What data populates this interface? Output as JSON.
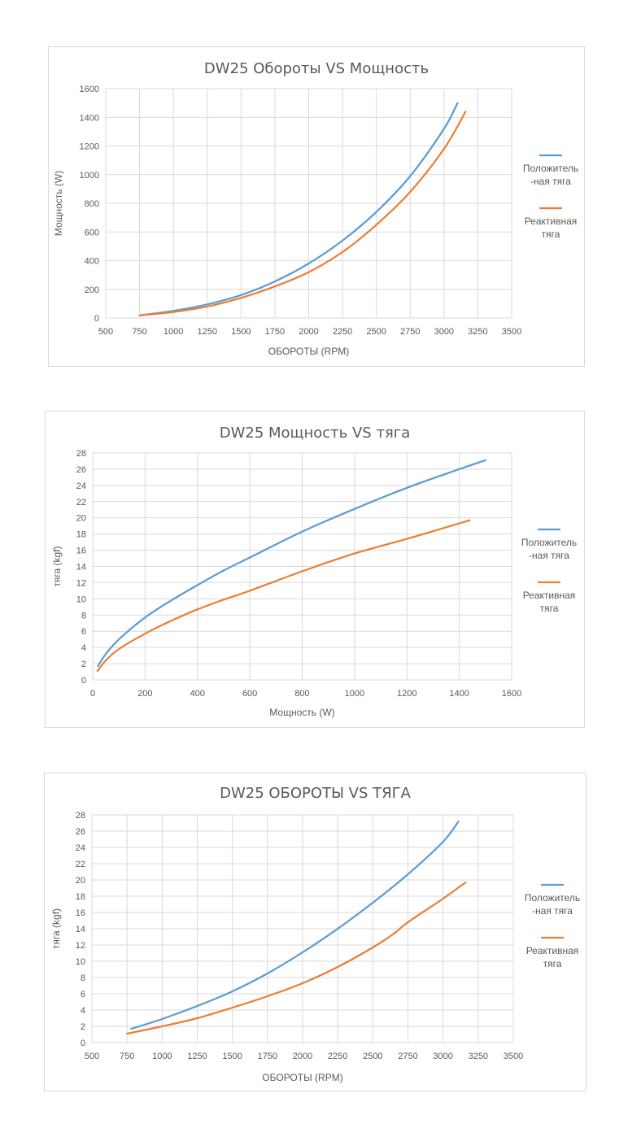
{
  "colors": {
    "positive": "#5b9bd5",
    "reactive": "#ed7d31",
    "grid": "#d9d9d9",
    "text": "#595959"
  },
  "chart_data": [
    {
      "type": "line",
      "title": "DW25 Обороты VS Мощность",
      "xlabel": "ОБОРОТЫ (RPM)",
      "ylabel": "Мощность (W)",
      "xlim": [
        500,
        3500
      ],
      "ylim": [
        0,
        1600
      ],
      "xticks": [
        500,
        750,
        1000,
        1250,
        1500,
        1750,
        2000,
        2250,
        2500,
        2750,
        3000,
        3250,
        3500
      ],
      "yticks": [
        0,
        200,
        400,
        600,
        800,
        1000,
        1200,
        1400,
        1600
      ],
      "grid": true,
      "legend_position": "right",
      "series": [
        {
          "name": "Положитель-ная тяга",
          "color": "#5b9bd5",
          "x": [
            760,
            1000,
            1250,
            1500,
            1750,
            2000,
            2250,
            2500,
            2750,
            3000,
            3100
          ],
          "y": [
            20,
            50,
            95,
            160,
            255,
            380,
            540,
            740,
            990,
            1320,
            1500
          ]
        },
        {
          "name": "Реактивная тяга",
          "color": "#ed7d31",
          "x": [
            750,
            1000,
            1250,
            1500,
            1750,
            2000,
            2250,
            2500,
            2750,
            3000,
            3160
          ],
          "y": [
            18,
            42,
            80,
            140,
            220,
            320,
            460,
            650,
            880,
            1180,
            1440
          ]
        }
      ]
    },
    {
      "type": "line",
      "title": "DW25 Мощность VS тяга",
      "xlabel": "Мощность (W)",
      "ylabel": "тяга (kgf)",
      "xlim": [
        0,
        1600
      ],
      "ylim": [
        0,
        28
      ],
      "xticks": [
        0,
        200,
        400,
        600,
        800,
        1000,
        1200,
        1400,
        1600
      ],
      "yticks": [
        0,
        2,
        4,
        6,
        8,
        10,
        12,
        14,
        16,
        18,
        20,
        22,
        24,
        26,
        28
      ],
      "grid": true,
      "legend_position": "right",
      "series": [
        {
          "name": "Положитель-ная тяга",
          "color": "#5b9bd5",
          "x": [
            20,
            50,
            100,
            200,
            300,
            400,
            500,
            600,
            800,
            1000,
            1200,
            1400,
            1500
          ],
          "y": [
            1.7,
            3.2,
            5.0,
            7.7,
            9.8,
            11.7,
            13.5,
            15.1,
            18.3,
            21.1,
            23.7,
            26.0,
            27.1
          ]
        },
        {
          "name": "Реактивная тяга",
          "color": "#ed7d31",
          "x": [
            18,
            50,
            100,
            200,
            300,
            400,
            500,
            600,
            800,
            1000,
            1200,
            1440
          ],
          "y": [
            1.1,
            2.4,
            3.8,
            5.7,
            7.3,
            8.7,
            9.9,
            11.0,
            13.4,
            15.6,
            17.4,
            19.7
          ]
        }
      ]
    },
    {
      "type": "line",
      "title": "DW25 ОБОРОТЫ VS ТЯГА",
      "xlabel": "ОБОРОТЫ (RPM)",
      "ylabel": "тяга (kgf)",
      "xlim": [
        500,
        3500
      ],
      "ylim": [
        0,
        28
      ],
      "xticks": [
        500,
        750,
        1000,
        1250,
        1500,
        1750,
        2000,
        2250,
        2500,
        2750,
        3000,
        3250,
        3500
      ],
      "yticks": [
        0,
        2,
        4,
        6,
        8,
        10,
        12,
        14,
        16,
        18,
        20,
        22,
        24,
        26,
        28
      ],
      "grid": true,
      "legend_position": "right",
      "series": [
        {
          "name": "Положитель-ная тяга",
          "color": "#5b9bd5",
          "x": [
            780,
            1000,
            1250,
            1500,
            1750,
            2000,
            2250,
            2500,
            2750,
            3000,
            3110
          ],
          "y": [
            1.7,
            2.9,
            4.5,
            6.3,
            8.5,
            11.1,
            14.0,
            17.2,
            20.7,
            24.7,
            27.2
          ]
        },
        {
          "name": "Реактивная тяга",
          "color": "#ed7d31",
          "x": [
            750,
            1000,
            1250,
            1500,
            1750,
            2000,
            2250,
            2500,
            2650,
            2750,
            3000,
            3160
          ],
          "y": [
            1.1,
            2.0,
            3.0,
            4.3,
            5.7,
            7.3,
            9.3,
            11.7,
            13.4,
            14.8,
            17.7,
            19.7
          ]
        }
      ]
    }
  ],
  "legend": {
    "positive_line1": "Положитель",
    "positive_line2": "-ная тяга",
    "reactive_line1": "Реактивная",
    "reactive_line2": "тяга"
  }
}
